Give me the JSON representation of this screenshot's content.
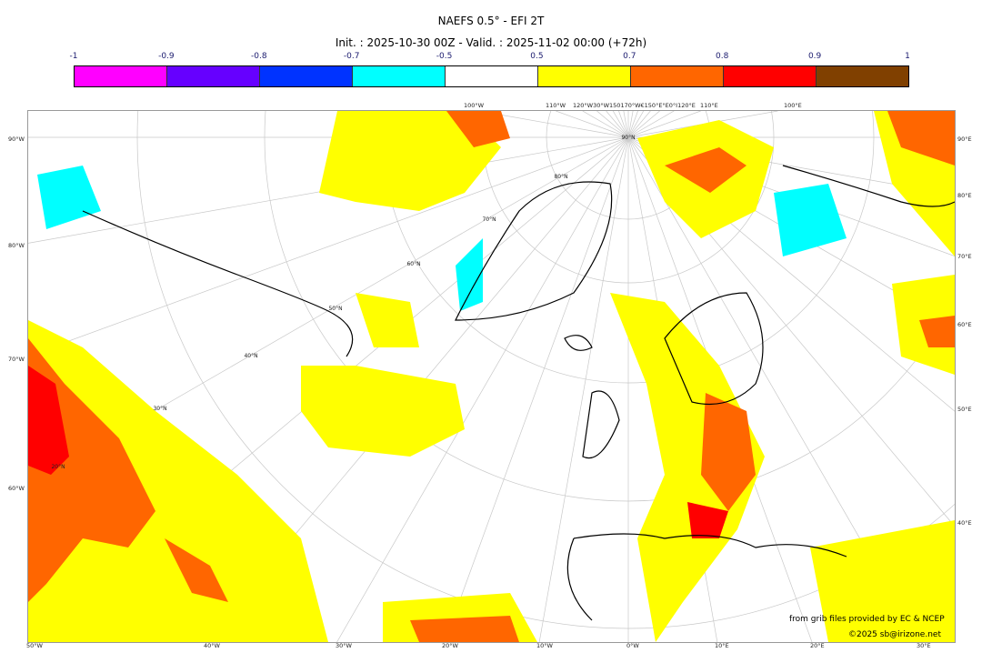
{
  "title": "NAEFS 0.5° - EFI 2T",
  "subtitle": "Init. : 2025-10-30 00Z - Valid. : 2025-11-02 00:00 (+72h)",
  "colorbar": {
    "ticks": [
      "-1",
      "-0.9",
      "-0.8",
      "-0.7",
      "-0.5",
      "0.5",
      "0.7",
      "0.8",
      "0.9",
      "1"
    ],
    "colors": [
      "#ff00ff",
      "#6600ff",
      "#0033ff",
      "#00ffff",
      "#ffffff",
      "#ffff00",
      "#ff6600",
      "#ff0000",
      "#804000"
    ]
  },
  "map": {
    "top_labels": [
      "100°W",
      "110°W",
      "120°W30°W150170°W€150°E°E0°I120°E",
      "110°E",
      "100°E"
    ],
    "left_labels": [
      "90°W",
      "80°W",
      "70°W",
      "60°W"
    ],
    "right_labels": [
      "90°E",
      "80°E",
      "70°E",
      "60°E",
      "50°E",
      "40°E"
    ],
    "bottom_labels": [
      "50°W",
      "40°W",
      "30°W",
      "20°W",
      "10°W",
      "0°W",
      "10°E",
      "20°E",
      "30°E"
    ],
    "lat_labels": [
      "90°N",
      "80°N",
      "70°N",
      "60°N",
      "50°N",
      "40°N",
      "30°N",
      "20°N"
    ]
  },
  "credits": {
    "source": "from grib files provided by EC & NCEP",
    "copyright": "©2025 sb@irizone.net"
  }
}
